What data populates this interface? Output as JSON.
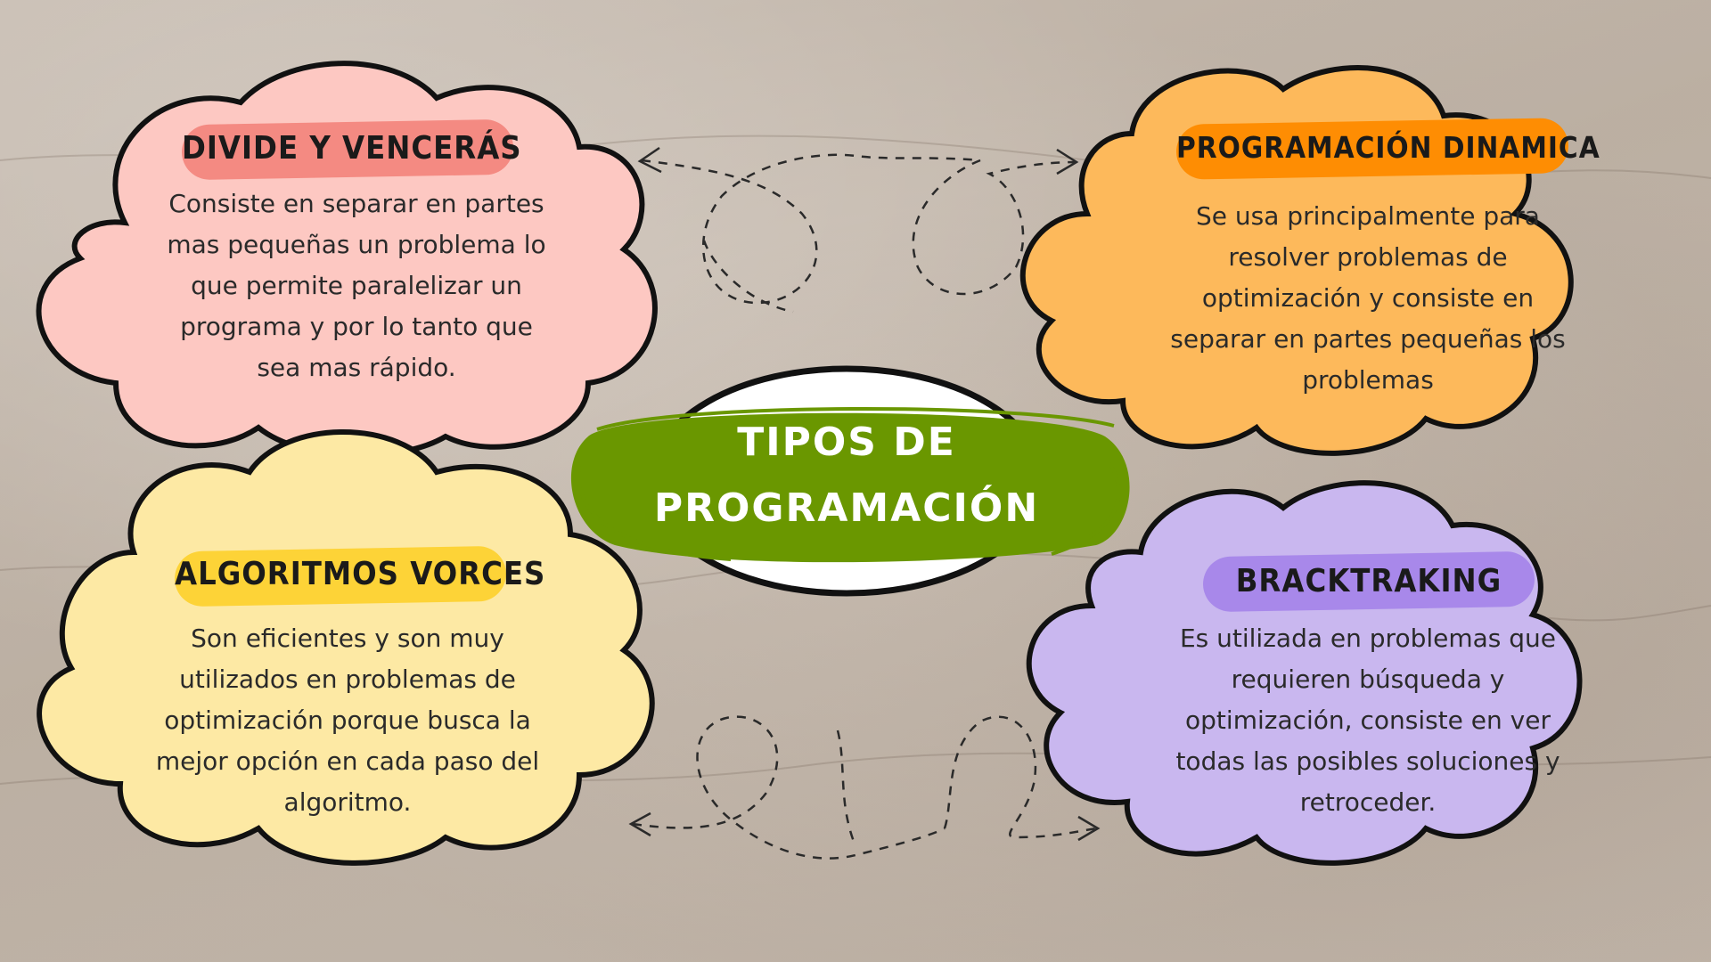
{
  "center": {
    "title_line1": "TIPOS DE",
    "title_line2": "PROGRAMACIÓN"
  },
  "colors": {
    "pink_cloud": "#fdc8c2",
    "pink_pill": "#f48a82",
    "orange_cloud": "#fdb95b",
    "orange_pill": "#fe8d03",
    "yellow_cloud": "#fde9a4",
    "yellow_pill": "#fdd337",
    "purple_cloud": "#c9b7ef",
    "purple_pill": "#a888ea",
    "green_center": "#6a9700"
  },
  "nodes": {
    "divide": {
      "heading": "DIVIDE Y VENCERÁS",
      "text": "Consiste en separar en partes mas pequeñas un problema lo que permite paralelizar un programa y por lo tanto que sea mas rápido."
    },
    "dinamica": {
      "heading": "PROGRAMACIÓN DINAMICA",
      "text": "Se usa principalmente para resolver problemas de optimización y consiste en separar en partes pequeñas los problemas"
    },
    "vorces": {
      "heading": "ALGORITMOS VORCES",
      "text": "Son eficientes y son muy utilizados en problemas de optimización porque busca la mejor opción en cada paso del algoritmo."
    },
    "backtracking": {
      "heading": "BRACKTRAKING",
      "text": "Es utilizada en problemas que requieren búsqueda y optimización, consiste en ver todas las posibles soluciones y retroceder."
    }
  }
}
